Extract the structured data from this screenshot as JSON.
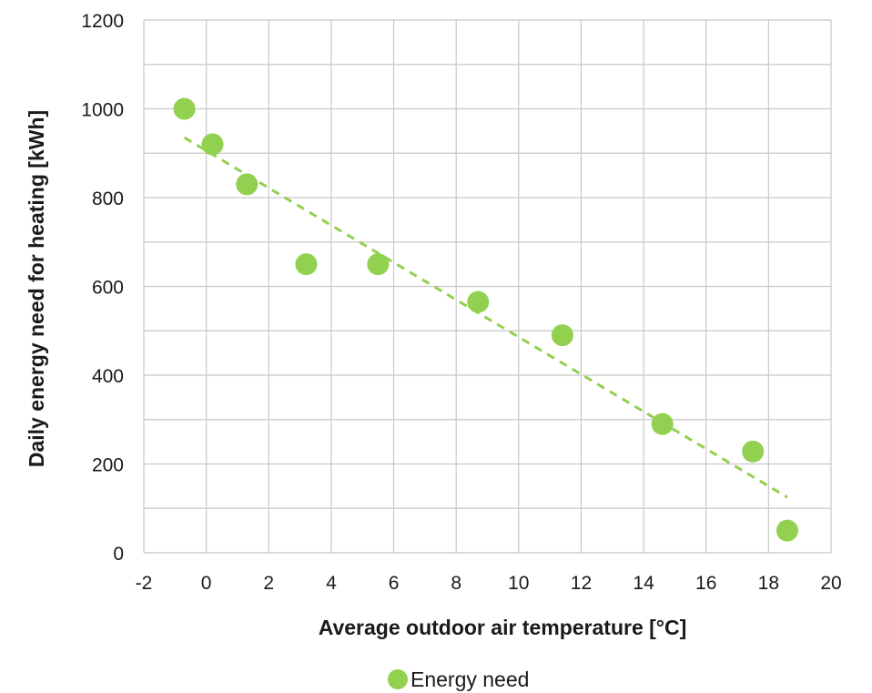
{
  "chart_data": {
    "type": "scatter",
    "xlabel": "Average outdoor air temperature [°C]",
    "ylabel": "Daily energy need for heating [kWh]",
    "xlim": [
      -2,
      20
    ],
    "ylim": [
      0,
      1200
    ],
    "x_ticks": [
      -2,
      0,
      2,
      4,
      6,
      8,
      10,
      12,
      14,
      16,
      18,
      20
    ],
    "y_ticks": [
      0,
      200,
      400,
      600,
      800,
      1000,
      1200
    ],
    "grid": true,
    "legend_position": "bottom-center",
    "series": [
      {
        "name": "Energy need",
        "color": "#92d050",
        "points": [
          {
            "x": -0.7,
            "y": 1000
          },
          {
            "x": 0.2,
            "y": 920
          },
          {
            "x": 1.3,
            "y": 830
          },
          {
            "x": 3.2,
            "y": 650
          },
          {
            "x": 5.5,
            "y": 650
          },
          {
            "x": 8.7,
            "y": 565
          },
          {
            "x": 11.4,
            "y": 490
          },
          {
            "x": 14.6,
            "y": 290
          },
          {
            "x": 17.5,
            "y": 228
          },
          {
            "x": 18.6,
            "y": 50
          }
        ]
      }
    ],
    "trendline": {
      "type": "linear",
      "style": "dashed",
      "color": "#92d050",
      "x_range": [
        -0.7,
        18.6
      ],
      "y_range": [
        935,
        125
      ]
    }
  }
}
